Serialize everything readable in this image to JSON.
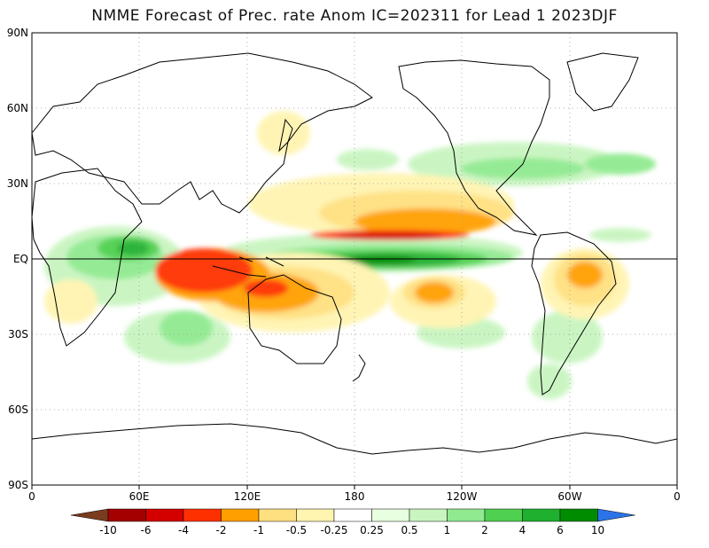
{
  "title": "NMME Forecast of Prec. rate Anom IC=202311 for Lead 1 2023DJF",
  "lat_labels": [
    "90N",
    "60N",
    "30N",
    "EQ",
    "30S",
    "60S",
    "90S"
  ],
  "lon_labels": [
    "0",
    "60E",
    "120E",
    "180",
    "120W",
    "60W",
    "0"
  ],
  "colorbar": {
    "labels": [
      "-10",
      "-6",
      "-4",
      "-2",
      "-1",
      "-0.5",
      "-0.25",
      "0.25",
      "0.5",
      "1",
      "2",
      "4",
      "6",
      "10"
    ],
    "colors": [
      "#7a3b1e",
      "#a50000",
      "#d40000",
      "#ff3000",
      "#ffa000",
      "#ffe080",
      "#fff4b0",
      "#ffffff",
      "#e8ffe0",
      "#c8f5c0",
      "#90ea90",
      "#50d050",
      "#20b030",
      "#008c00",
      "#2a74e8"
    ]
  },
  "colors": {
    "wet_strong": "#008c00",
    "wet": "#50d050",
    "wet_light": "#c8f5c0",
    "dry_light": "#ffe080",
    "dry": "#ffa000",
    "dry_strong": "#ff3000",
    "dry_extreme": "#d40000"
  }
}
